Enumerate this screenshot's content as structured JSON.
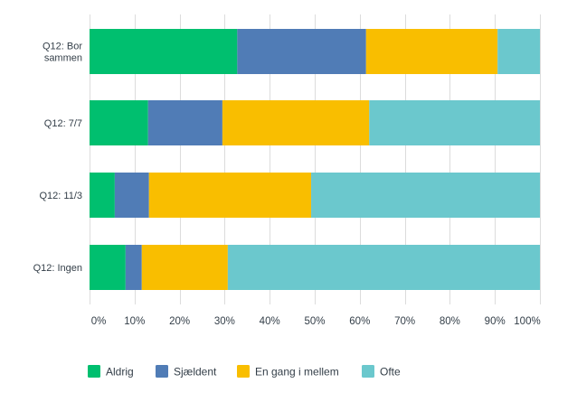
{
  "chart_data": {
    "type": "bar",
    "orientation": "horizontal",
    "stacked": true,
    "title": "",
    "xlabel": "",
    "ylabel": "",
    "xlim": [
      0,
      100
    ],
    "x_tick_labels": [
      "0%",
      "10%",
      "20%",
      "30%",
      "40%",
      "50%",
      "60%",
      "70%",
      "80%",
      "90%",
      "100%"
    ],
    "grid": true,
    "legend_position": "bottom",
    "categories": [
      [
        "Q12: Bor",
        "sammen"
      ],
      [
        "Q12: 7/7"
      ],
      [
        "Q12: 11/3"
      ],
      [
        "Q12: Ingen"
      ]
    ],
    "series": [
      {
        "name": "Aldrig",
        "color": "#00bf6f",
        "values": [
          32.8,
          13.0,
          5.6,
          8.0
        ]
      },
      {
        "name": "Sjældent",
        "color": "#507cb6",
        "values": [
          28.6,
          16.5,
          7.6,
          3.6
        ]
      },
      {
        "name": "En gang i mellem",
        "color": "#f9be00",
        "values": [
          29.2,
          32.6,
          36.0,
          19.1
        ]
      },
      {
        "name": "Ofte",
        "color": "#6bc8cd",
        "values": [
          9.4,
          37.9,
          50.8,
          69.3
        ]
      }
    ]
  }
}
